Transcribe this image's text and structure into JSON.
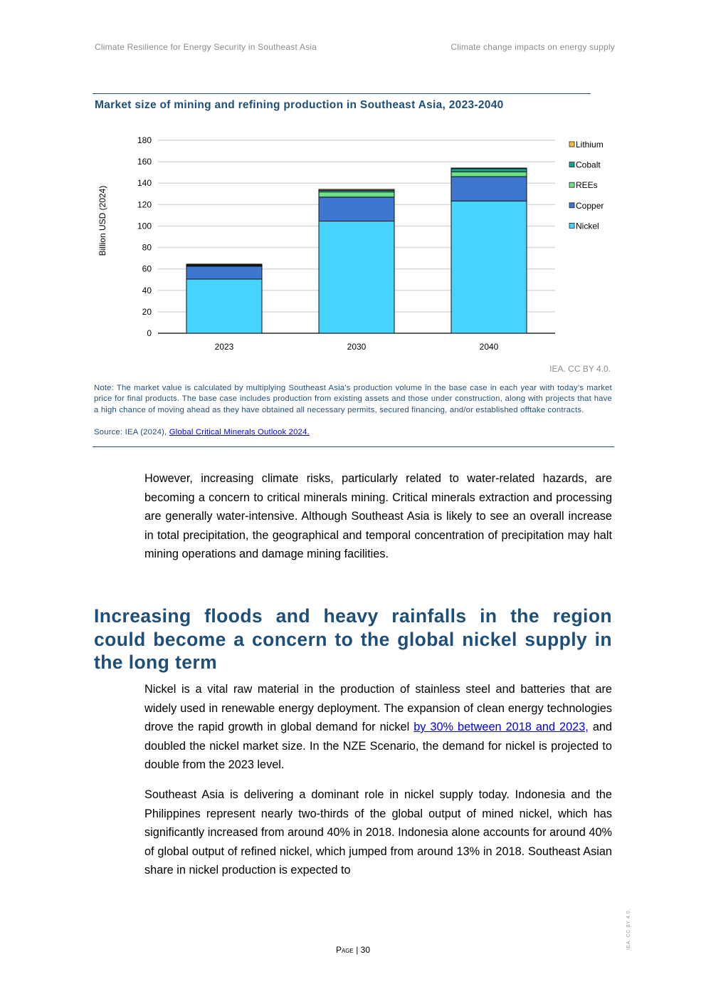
{
  "header": {
    "left": "Climate Resilience for Energy Security in Southeast Asia",
    "right": "Climate change impacts on energy supply"
  },
  "figure": {
    "title": "Market size of mining and refining production in Southeast Asia, 2023-2040",
    "credit": "IEA. CC BY 4.0.",
    "note": "Note: The market value is calculated by multiplying Southeast Asia’s production volume in the base case in each year with today’s market price for final products. The base case includes production from existing assets and those under construction, along with projects that have a high chance of moving ahead as they have obtained all necessary permits, secured financing, and/or established offtake contracts.",
    "source_prefix": "Source: IEA (2024), ",
    "source_link": "Global Critical Minerals Outlook 2024."
  },
  "chart_data": {
    "type": "bar",
    "stacked": true,
    "title": "Market size of mining and refining production in Southeast Asia, 2023-2040",
    "xlabel": "",
    "ylabel": "Billion USD (2024)",
    "ylim": [
      0,
      180
    ],
    "yticks": [
      0,
      20,
      40,
      60,
      80,
      100,
      120,
      140,
      160,
      180
    ],
    "grid": true,
    "legend_position": "right",
    "categories": [
      "2023",
      "2030",
      "2040"
    ],
    "series": [
      {
        "name": "Nickel",
        "color": "#47d3ff",
        "values": [
          50.5,
          104.6,
          123.4
        ]
      },
      {
        "name": "Copper",
        "color": "#3f76cf",
        "values": [
          12.0,
          22.4,
          22.7
        ]
      },
      {
        "name": "REEs",
        "color": "#6ee08a",
        "values": [
          0.6,
          4.8,
          4.5
        ]
      },
      {
        "name": "Cobalt",
        "color": "#13a38f",
        "values": [
          0.7,
          1.5,
          3.0
        ]
      },
      {
        "name": "Lithium",
        "color": "#f5c03a",
        "values": [
          0.7,
          0.9,
          0.5
        ]
      }
    ]
  },
  "body": {
    "p1": "However, increasing climate risks, particularly related to water-related hazards, are becoming a concern to critical minerals mining. Critical minerals extraction and processing are generally water-intensive. Although Southeast Asia is likely to see an overall increase in total precipitation, the geographical and temporal concentration of precipitation may halt mining operations and damage mining facilities.",
    "heading": "Increasing floods and heavy rainfalls in the region could become a concern to the global nickel supply in the long term",
    "p2_a": "Nickel is a vital raw material in the production of stainless steel and batteries that are widely used in renewable energy deployment. The expansion of clean energy technologies drove the rapid growth in global demand for nickel ",
    "p2_link": "by 30% between 2018 and 2023,",
    "p2_b": " and doubled the nickel market size. In the NZE Scenario, the demand for nickel is projected to double from the 2023 level.",
    "p3": "Southeast Asia is delivering a dominant role in nickel supply today. Indonesia and the Philippines represent nearly two-thirds of the global output of mined nickel, which has significantly increased from around 40% in 2018. Indonesia alone accounts for around 40% of global output of refined nickel, which jumped from around 13% in 2018. Southeast Asian share in nickel production is expected to"
  },
  "footer": {
    "page_label": "Page",
    "page_sep": " | ",
    "page_number": "30",
    "side_license": "IEA. CC BY 4.0."
  }
}
